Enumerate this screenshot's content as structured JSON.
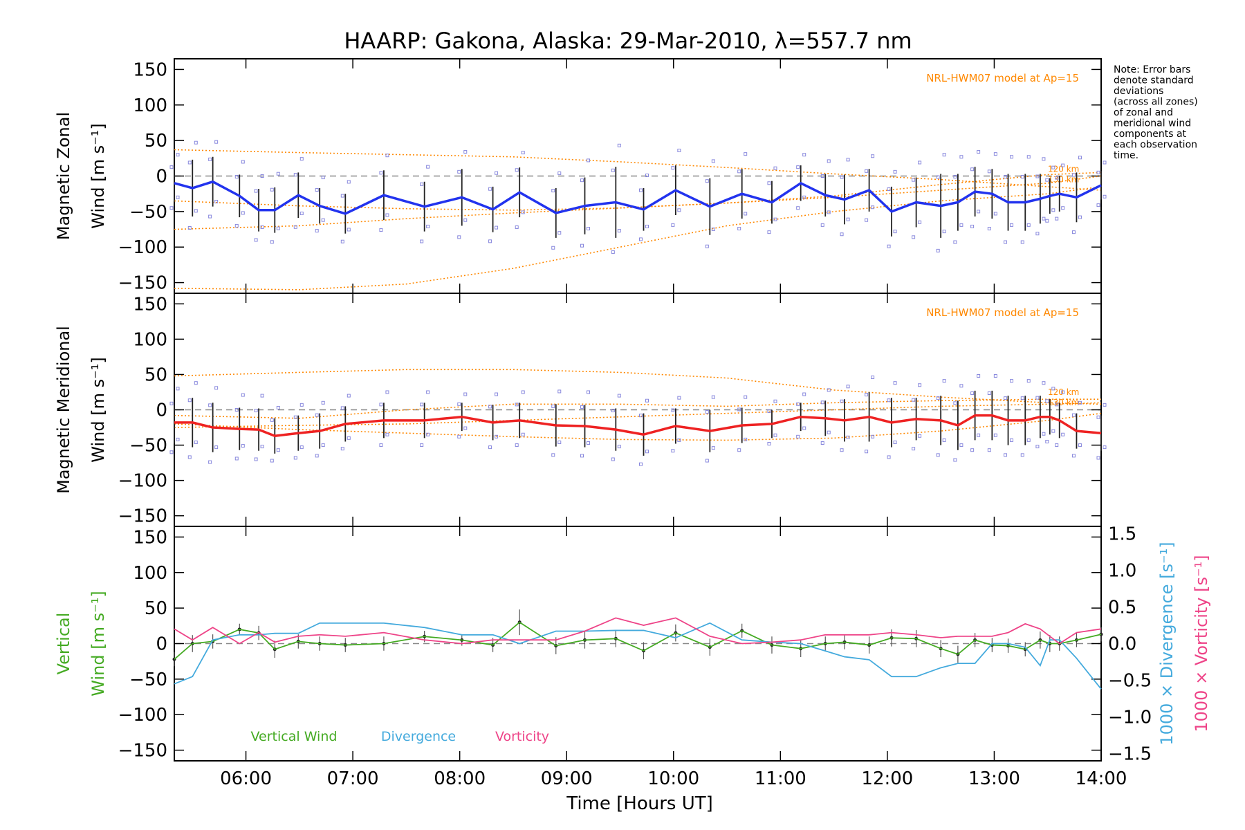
{
  "chart_data": {
    "title": "HAARP: Gakona,  Alaska: 29-Mar-2010, λ=557.7 nm",
    "note": [
      "Note: Error bars",
      "denote standard",
      "deviations",
      "(across all zones)",
      "of zonal and",
      "meridional wind",
      "components at",
      "each observation",
      "time."
    ],
    "xlabel": "Time [Hours UT]",
    "x_range": [
      5.33,
      14.0
    ],
    "x_ticks": [
      {
        "h": 6,
        "label": "06:00"
      },
      {
        "h": 7,
        "label": "07:00"
      },
      {
        "h": 8,
        "label": "08:00"
      },
      {
        "h": 9,
        "label": "09:00"
      },
      {
        "h": 10,
        "label": "10:00"
      },
      {
        "h": 11,
        "label": "11:00"
      },
      {
        "h": 12,
        "label": "12:00"
      },
      {
        "h": 13,
        "label": "13:00"
      },
      {
        "h": 14,
        "label": "14:00"
      }
    ],
    "panels": [
      {
        "type": "line",
        "ylabel_line1": "Magnetic Zonal",
        "ylabel_line2": "Wind [m s⁻¹]",
        "ylim": [
          -165,
          165
        ],
        "yticks": [
          150,
          100,
          50,
          0,
          -50,
          -100,
          -150
        ],
        "model_label": "NRL-HWM07 model at Ap=15",
        "model_alt_labels": [
          "120 km",
          "130 km"
        ],
        "series": {
          "color": "#2233ee",
          "x": [
            5.33,
            5.5,
            5.69,
            5.94,
            6.12,
            6.27,
            6.49,
            6.69,
            6.93,
            7.29,
            7.67,
            8.02,
            8.31,
            8.56,
            8.9,
            9.17,
            9.46,
            9.72,
            10.02,
            10.34,
            10.64,
            10.92,
            11.19,
            11.42,
            11.6,
            11.83,
            12.04,
            12.27,
            12.5,
            12.66,
            12.82,
            12.98,
            13.13,
            13.29,
            13.43,
            13.52,
            13.61,
            13.77,
            14.0
          ],
          "y": [
            -10,
            -17,
            -8,
            -28,
            -48,
            -48,
            -27,
            -42,
            -53,
            -27,
            -43,
            -30,
            -47,
            -23,
            -52,
            -42,
            -37,
            -47,
            -20,
            -43,
            -25,
            -37,
            -10,
            -27,
            -33,
            -20,
            -50,
            -37,
            -42,
            -37,
            -22,
            -25,
            -37,
            -37,
            -32,
            -28,
            -25,
            -30,
            -13
          ],
          "err": [
            25,
            40,
            35,
            30,
            30,
            32,
            32,
            25,
            28,
            35,
            35,
            40,
            32,
            35,
            35,
            40,
            50,
            30,
            35,
            40,
            35,
            30,
            25,
            30,
            35,
            30,
            35,
            35,
            45,
            40,
            35,
            35,
            40,
            40,
            35,
            25,
            25,
            35,
            20
          ]
        },
        "model_curves": [
          {
            "x": [
              5.33,
              6.5,
              7.5,
              8.5,
              9.5,
              10.5,
              11.5,
              12.5,
              13.5,
              14.0
            ],
            "y": [
              37,
              33,
              30,
              27,
              20,
              12,
              3,
              -5,
              -15,
              -20
            ]
          },
          {
            "x": [
              5.33,
              6.5,
              7.5,
              8.5,
              9.5,
              10.5,
              11.5,
              12.5,
              13.5,
              14.0
            ],
            "y": [
              -75,
              -70,
              -60,
              -52,
              -45,
              -38,
              -30,
              -20,
              -10,
              0
            ]
          },
          {
            "x": [
              5.33,
              6.5,
              7.5,
              8.5,
              9.5,
              10.5,
              11.5,
              12.5,
              13.5,
              14.0
            ],
            "y": [
              -158,
              -160,
              -152,
              -130,
              -100,
              -70,
              -50,
              -35,
              -25,
              -15
            ]
          },
          {
            "x": [
              5.33,
              6.5,
              7.5,
              8.5,
              9.5,
              10.5,
              11.5,
              12.5,
              13.5,
              14.0
            ],
            "y": [
              -35,
              -42,
              -46,
              -48,
              -45,
              -38,
              -28,
              -12,
              2,
              5
            ]
          }
        ]
      },
      {
        "type": "line",
        "ylabel_line1": "Magnetic Meridional",
        "ylabel_line2": "Wind [m s⁻¹]",
        "ylim": [
          -165,
          165
        ],
        "yticks": [
          150,
          100,
          50,
          0,
          -50,
          -100,
          -150
        ],
        "model_label": "NRL-HWM07 model at Ap=15",
        "model_alt_labels": [
          "120 km",
          "130 km"
        ],
        "series": {
          "color": "#ee2222",
          "x": [
            5.33,
            5.5,
            5.69,
            5.94,
            6.12,
            6.27,
            6.49,
            6.69,
            6.93,
            7.29,
            7.67,
            8.02,
            8.31,
            8.56,
            8.9,
            9.17,
            9.46,
            9.72,
            10.02,
            10.34,
            10.64,
            10.92,
            11.19,
            11.42,
            11.6,
            11.83,
            12.04,
            12.27,
            12.5,
            12.66,
            12.82,
            12.98,
            13.13,
            13.29,
            13.43,
            13.52,
            13.61,
            13.77,
            14.0
          ],
          "y": [
            -18,
            -18,
            -25,
            -27,
            -28,
            -37,
            -33,
            -30,
            -20,
            -15,
            -15,
            -10,
            -18,
            -15,
            -22,
            -23,
            -28,
            -35,
            -23,
            -30,
            -22,
            -20,
            -10,
            -12,
            -15,
            -10,
            -18,
            -13,
            -15,
            -22,
            -8,
            -8,
            -15,
            -15,
            -10,
            -10,
            -15,
            -30,
            -33
          ],
          "err": [
            30,
            35,
            35,
            30,
            30,
            25,
            25,
            25,
            25,
            25,
            25,
            20,
            25,
            25,
            30,
            30,
            30,
            30,
            25,
            30,
            25,
            20,
            20,
            25,
            30,
            35,
            35,
            30,
            35,
            35,
            35,
            35,
            35,
            35,
            30,
            25,
            25,
            25,
            25
          ]
        },
        "model_curves": [
          {
            "x": [
              5.33,
              6.5,
              7.5,
              8.5,
              9.5,
              10.5,
              11.5,
              12.5,
              13.5,
              14.0
            ],
            "y": [
              48,
              53,
              57,
              57,
              53,
              45,
              28,
              18,
              10,
              8
            ]
          },
          {
            "x": [
              5.33,
              6.5,
              7.5,
              8.5,
              9.5,
              10.5,
              11.5,
              12.5,
              13.5,
              14.0
            ],
            "y": [
              -8,
              -12,
              0,
              8,
              8,
              5,
              10,
              13,
              15,
              15
            ]
          },
          {
            "x": [
              5.33,
              6.5,
              7.5,
              8.5,
              9.5,
              10.5,
              11.5,
              12.5,
              13.5,
              14.0
            ],
            "y": [
              -25,
              -22,
              -20,
              -15,
              -10,
              -5,
              0,
              5,
              8,
              10
            ]
          },
          {
            "x": [
              5.33,
              6.5,
              7.5,
              8.5,
              9.5,
              10.5,
              11.5,
              12.5,
              13.5,
              14.0
            ],
            "y": [
              -20,
              -28,
              -33,
              -38,
              -42,
              -43,
              -40,
              -30,
              -15,
              -5
            ]
          }
        ]
      },
      {
        "type": "line",
        "ylabel_line1": "Vertical",
        "ylabel_line2": "Wind [m s⁻¹]",
        "ylim": [
          -165,
          165
        ],
        "yticks": [
          150,
          100,
          50,
          0,
          -50,
          -100,
          -150
        ],
        "right_ylim": [
          -1.6,
          1.6
        ],
        "right_yticks": [
          {
            "v": 1.5,
            "label": "1.5"
          },
          {
            "v": 1.0,
            "label": "1.0"
          },
          {
            "v": 0.5,
            "label": "0.5"
          },
          {
            "v": 0.0,
            "label": "0.0"
          },
          {
            "v": -0.5,
            "label": "−0.5"
          },
          {
            "v": -1.0,
            "label": "−1.0"
          },
          {
            "v": -1.5,
            "label": "−1.5"
          }
        ],
        "right_label_1": "1000 × Divergence [s⁻¹]",
        "right_label_2": "1000 × Vorticity [s⁻¹]",
        "legend": [
          "Vertical Wind",
          "Divergence",
          "Vorticity"
        ],
        "series": [
          {
            "name": "Vertical Wind",
            "color": "#44aa22",
            "axis": "left",
            "x": [
              5.33,
              5.5,
              5.69,
              5.94,
              6.12,
              6.27,
              6.49,
              6.69,
              6.93,
              7.29,
              7.67,
              8.02,
              8.31,
              8.56,
              8.9,
              9.17,
              9.46,
              9.72,
              10.02,
              10.34,
              10.64,
              10.92,
              11.19,
              11.42,
              11.6,
              11.83,
              12.04,
              12.27,
              12.5,
              12.66,
              12.82,
              12.98,
              13.13,
              13.29,
              13.43,
              13.52,
              13.61,
              13.77,
              14.0
            ],
            "y": [
              -22,
              0,
              3,
              20,
              15,
              -8,
              3,
              0,
              -2,
              0,
              10,
              5,
              -2,
              30,
              -3,
              5,
              7,
              -10,
              15,
              -5,
              18,
              -2,
              -7,
              0,
              2,
              -2,
              8,
              7,
              -7,
              -15,
              5,
              -2,
              -3,
              -8,
              5,
              0,
              0,
              5,
              13
            ],
            "err": [
              10,
              12,
              10,
              8,
              10,
              12,
              10,
              10,
              10,
              10,
              8,
              8,
              10,
              18,
              12,
              12,
              12,
              12,
              12,
              12,
              10,
              12,
              12,
              10,
              10,
              12,
              12,
              12,
              12,
              12,
              10,
              10,
              10,
              10,
              12,
              12,
              10,
              10,
              10
            ]
          },
          {
            "name": "Divergence",
            "color": "#44aadd",
            "axis": "right",
            "x": [
              5.33,
              5.5,
              5.69,
              5.94,
              6.12,
              6.27,
              6.49,
              6.69,
              6.93,
              7.29,
              7.67,
              8.02,
              8.31,
              8.56,
              8.9,
              9.17,
              9.46,
              9.72,
              10.02,
              10.34,
              10.64,
              10.92,
              11.19,
              11.42,
              11.6,
              11.83,
              12.04,
              12.27,
              12.5,
              12.66,
              12.82,
              12.98,
              13.13,
              13.29,
              13.43,
              13.52,
              13.61,
              13.77,
              14.0
            ],
            "y": [
              -0.55,
              -0.45,
              0.05,
              0.12,
              0.12,
              0.14,
              0.14,
              0.28,
              0.28,
              0.28,
              0.22,
              0.12,
              0.12,
              0.0,
              0.17,
              0.17,
              0.18,
              0.18,
              0.08,
              0.28,
              0.05,
              0.02,
              0.0,
              -0.1,
              -0.18,
              -0.22,
              -0.45,
              -0.45,
              -0.33,
              -0.27,
              -0.27,
              0.0,
              0.0,
              -0.05,
              -0.3,
              0.05,
              0.05,
              -0.2,
              -0.62
            ]
          },
          {
            "name": "Vorticity",
            "color": "#ee4488",
            "axis": "right",
            "x": [
              5.33,
              5.5,
              5.69,
              5.94,
              6.12,
              6.27,
              6.49,
              6.69,
              6.93,
              7.29,
              7.67,
              8.02,
              8.31,
              8.56,
              8.9,
              9.17,
              9.46,
              9.72,
              10.02,
              10.34,
              10.64,
              10.92,
              11.19,
              11.42,
              11.6,
              11.83,
              12.04,
              12.27,
              12.5,
              12.66,
              12.82,
              12.98,
              13.13,
              13.29,
              13.43,
              13.52,
              13.61,
              13.77,
              14.0
            ],
            "y": [
              0.2,
              0.05,
              0.22,
              0.0,
              0.15,
              0.02,
              0.1,
              0.12,
              0.1,
              0.15,
              0.05,
              0.0,
              0.05,
              0.05,
              0.05,
              0.17,
              0.35,
              0.25,
              0.35,
              0.1,
              0.0,
              0.02,
              0.05,
              0.12,
              0.12,
              0.12,
              0.15,
              0.12,
              0.08,
              0.1,
              0.1,
              0.1,
              0.15,
              0.27,
              0.2,
              0.1,
              0.0,
              0.15,
              0.2
            ]
          }
        ]
      }
    ]
  },
  "colors": {
    "model": "#ff8800",
    "zero_line": "#888888",
    "scatter": "#8888dd",
    "error_bar": "#222222"
  }
}
